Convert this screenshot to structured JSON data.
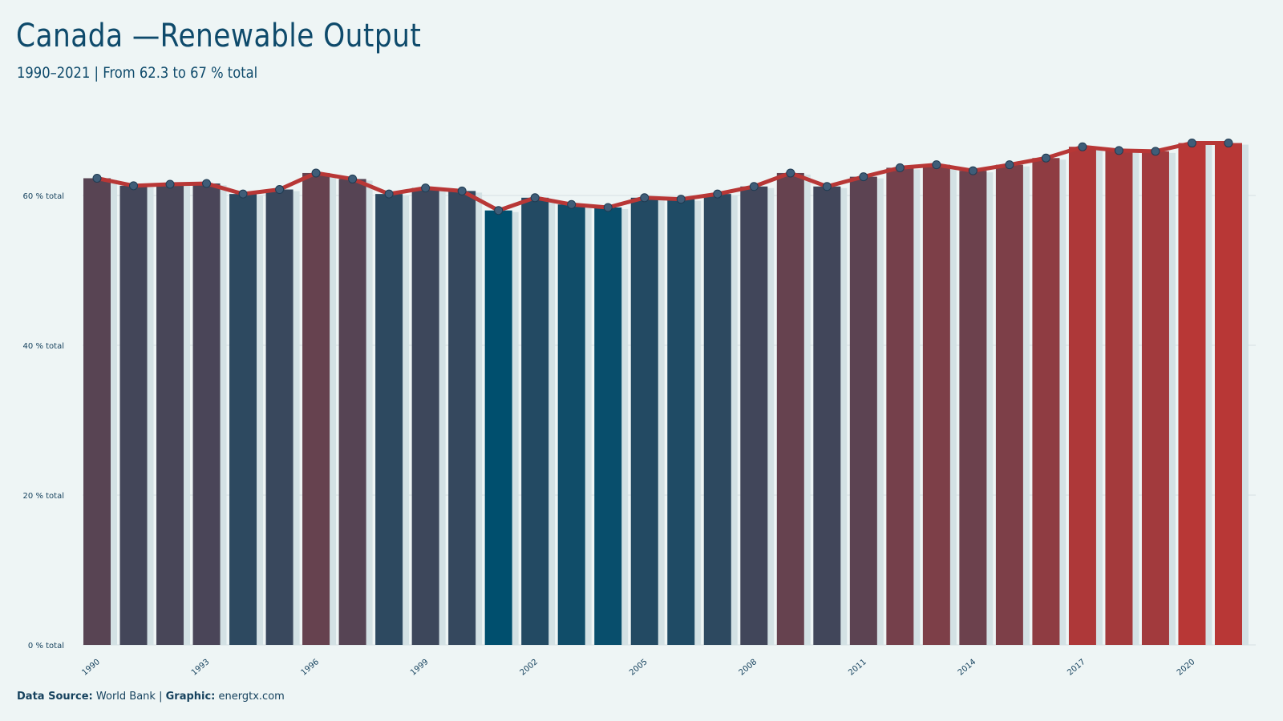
{
  "title": "Canada —Renewable Output",
  "subtitle": "1990–2021 | From 62.3 to 67 % total",
  "caption": {
    "source_label": "Data Source:",
    "source_value": "World Bank",
    "separator": " | ",
    "graphic_label": "Graphic:",
    "graphic_value": "energtx.com"
  },
  "chart_data": {
    "type": "bar",
    "x": [
      1990,
      1991,
      1992,
      1993,
      1994,
      1995,
      1996,
      1997,
      1998,
      1999,
      2000,
      2001,
      2002,
      2003,
      2004,
      2005,
      2006,
      2007,
      2008,
      2009,
      2010,
      2011,
      2012,
      2013,
      2014,
      2015,
      2016,
      2017,
      2018,
      2019,
      2020,
      2021
    ],
    "values": [
      62.3,
      61.3,
      61.5,
      61.6,
      60.2,
      60.8,
      63.0,
      62.2,
      60.2,
      61.0,
      60.6,
      58.0,
      59.7,
      58.8,
      58.4,
      59.7,
      59.5,
      60.2,
      61.2,
      63.0,
      61.2,
      62.5,
      63.7,
      64.1,
      63.3,
      64.1,
      65.0,
      66.5,
      66.0,
      65.9,
      67.0,
      67.0
    ],
    "series": [
      {
        "name": "",
        "type": "bar"
      },
      {
        "name": "",
        "type": "line"
      }
    ],
    "x_tick_labels": [
      "1990",
      "1993",
      "1996",
      "1999",
      "2002",
      "2005",
      "2008",
      "2011",
      "2014",
      "2017",
      "2020"
    ],
    "y_tick_values": [
      0,
      20,
      40,
      60
    ],
    "y_tick_labels": [
      "0 % total",
      "20 % total",
      "40 % total",
      "60 % total"
    ],
    "ylim": [
      0,
      70
    ],
    "xlabel": "",
    "ylabel": "",
    "grid": true,
    "legend": "none",
    "colors": {
      "low": "#004f6e",
      "high": "#b83736",
      "line": "#b83736",
      "marker_fill": "#3f5d78",
      "marker_stroke": "#1f3b52",
      "ghost_bar": "#d3e1e4",
      "grid": "#d6dfe2"
    }
  }
}
